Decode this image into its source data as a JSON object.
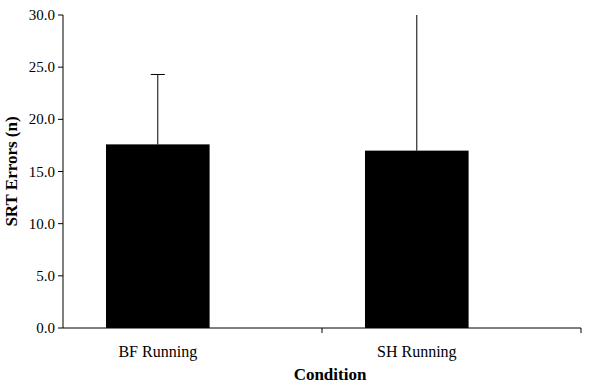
{
  "chart_data": {
    "type": "bar",
    "x_label": "Condition",
    "y_label": "SRT Errors (n)",
    "categories": [
      "BF Running",
      "SH Running"
    ],
    "values": [
      17.6,
      17.0
    ],
    "errors": [
      6.7,
      13.5
    ],
    "color": "#000000",
    "ylim": [
      0,
      30
    ],
    "yticks": [
      {
        "value": 0,
        "label": "0.0"
      },
      {
        "value": 5,
        "label": "5.0"
      },
      {
        "value": 10,
        "label": "10.0"
      },
      {
        "value": 15,
        "label": "15.0"
      },
      {
        "value": 20,
        "label": "20.0"
      },
      {
        "value": 25,
        "label": "25.0"
      },
      {
        "value": 30,
        "label": "30.0"
      }
    ],
    "grid": false
  }
}
